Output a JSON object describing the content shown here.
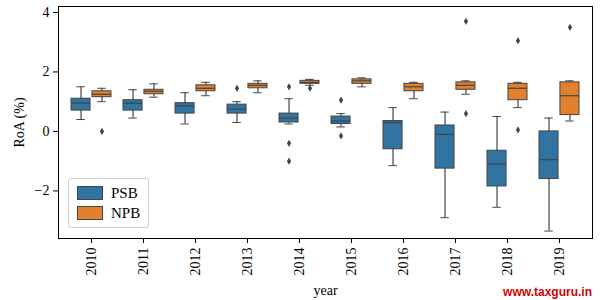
{
  "chart_data": {
    "type": "box",
    "x_label": "year",
    "y_label": "RoA (%)",
    "watermark": "www.taxguru.in",
    "categories": [
      "2010",
      "2011",
      "2012",
      "2013",
      "2014",
      "2015",
      "2016",
      "2017",
      "2018",
      "2019"
    ],
    "ylim": [
      -3.6,
      4.2
    ],
    "yticks": [
      -2,
      0,
      2,
      4
    ],
    "grid": false,
    "legend": "lower left",
    "series": [
      {
        "name": "PSB",
        "color": "#3274a1",
        "boxes": [
          {
            "min": 0.4,
            "q1": 0.7,
            "median": 0.95,
            "q3": 1.1,
            "max": 1.5,
            "outliers": []
          },
          {
            "min": 0.45,
            "q1": 0.7,
            "median": 0.95,
            "q3": 1.05,
            "max": 1.4,
            "outliers": []
          },
          {
            "min": 0.25,
            "q1": 0.6,
            "median": 0.85,
            "q3": 0.95,
            "max": 1.3,
            "outliers": []
          },
          {
            "min": 0.3,
            "q1": 0.6,
            "median": 0.75,
            "q3": 0.9,
            "max": 1.0,
            "outliers": [
              1.45
            ]
          },
          {
            "min": 0.25,
            "q1": 0.3,
            "median": 0.45,
            "q3": 0.6,
            "max": 1.1,
            "outliers": [
              1.5,
              -0.4,
              -1.0
            ]
          },
          {
            "min": 0.15,
            "q1": 0.25,
            "median": 0.35,
            "q3": 0.5,
            "max": 0.6,
            "outliers": [
              1.05,
              -0.15
            ]
          },
          {
            "min": -1.15,
            "q1": -0.6,
            "median": 0.3,
            "q3": 0.35,
            "max": 0.8,
            "outliers": []
          },
          {
            "min": -2.9,
            "q1": -1.25,
            "median": -0.1,
            "q3": 0.2,
            "max": 0.65,
            "outliers": []
          },
          {
            "min": -2.55,
            "q1": -1.85,
            "median": -1.1,
            "q3": -0.65,
            "max": 0.5,
            "outliers": []
          },
          {
            "min": -3.35,
            "q1": -1.6,
            "median": -0.95,
            "q3": 0.0,
            "max": 0.45,
            "outliers": []
          }
        ]
      },
      {
        "name": "NPB",
        "color": "#e1812c",
        "boxes": [
          {
            "min": 1.0,
            "q1": 1.15,
            "median": 1.25,
            "q3": 1.35,
            "max": 1.45,
            "outliers": [
              0.0
            ]
          },
          {
            "min": 1.15,
            "q1": 1.25,
            "median": 1.35,
            "q3": 1.4,
            "max": 1.6,
            "outliers": []
          },
          {
            "min": 1.2,
            "q1": 1.35,
            "median": 1.45,
            "q3": 1.55,
            "max": 1.65,
            "outliers": []
          },
          {
            "min": 1.3,
            "q1": 1.45,
            "median": 1.55,
            "q3": 1.6,
            "max": 1.7,
            "outliers": []
          },
          {
            "min": 1.55,
            "q1": 1.6,
            "median": 1.65,
            "q3": 1.7,
            "max": 1.75,
            "outliers": [
              1.45
            ]
          },
          {
            "min": 1.5,
            "q1": 1.6,
            "median": 1.7,
            "q3": 1.75,
            "max": 1.8,
            "outliers": []
          },
          {
            "min": 1.1,
            "q1": 1.35,
            "median": 1.5,
            "q3": 1.6,
            "max": 1.65,
            "outliers": []
          },
          {
            "min": 1.25,
            "q1": 1.4,
            "median": 1.55,
            "q3": 1.65,
            "max": 1.7,
            "outliers": [
              3.7,
              0.6
            ]
          },
          {
            "min": 0.8,
            "q1": 1.05,
            "median": 1.45,
            "q3": 1.6,
            "max": 1.65,
            "outliers": [
              3.05,
              0.05
            ]
          },
          {
            "min": 0.35,
            "q1": 0.55,
            "median": 1.2,
            "q3": 1.65,
            "max": 1.7,
            "outliers": [
              3.5
            ]
          }
        ]
      }
    ]
  }
}
